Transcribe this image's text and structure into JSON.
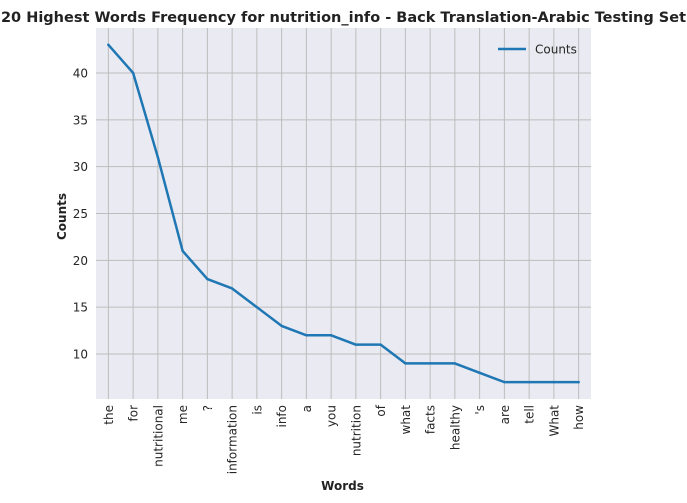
{
  "chart_data": {
    "type": "line",
    "title": "20 Highest Words Frequency for nutrition_info - Back Translation-Arabic Testing Set",
    "xlabel": "Words",
    "ylabel": "Counts",
    "categories": [
      "the",
      "for",
      "nutritional",
      "me",
      "?",
      "information",
      "is",
      "info",
      "a",
      "you",
      "nutrition",
      "of",
      "what",
      "facts",
      "healthy",
      "'s",
      "are",
      "tell",
      "What",
      "how"
    ],
    "series": [
      {
        "name": "Counts",
        "values": [
          43,
          40,
          31,
          21,
          18,
          17,
          15,
          13,
          12,
          12,
          11,
          11,
          9,
          9,
          9,
          8,
          7,
          7,
          7,
          7
        ]
      }
    ],
    "yticks": [
      10,
      15,
      20,
      25,
      30,
      35,
      40
    ],
    "ylim": [
      5.2,
      44.8
    ],
    "grid": true,
    "legend": "top-right",
    "colors": {
      "line": "#1f77b4",
      "background": "#eaeaf2",
      "grid": "#bdbdbd"
    }
  }
}
